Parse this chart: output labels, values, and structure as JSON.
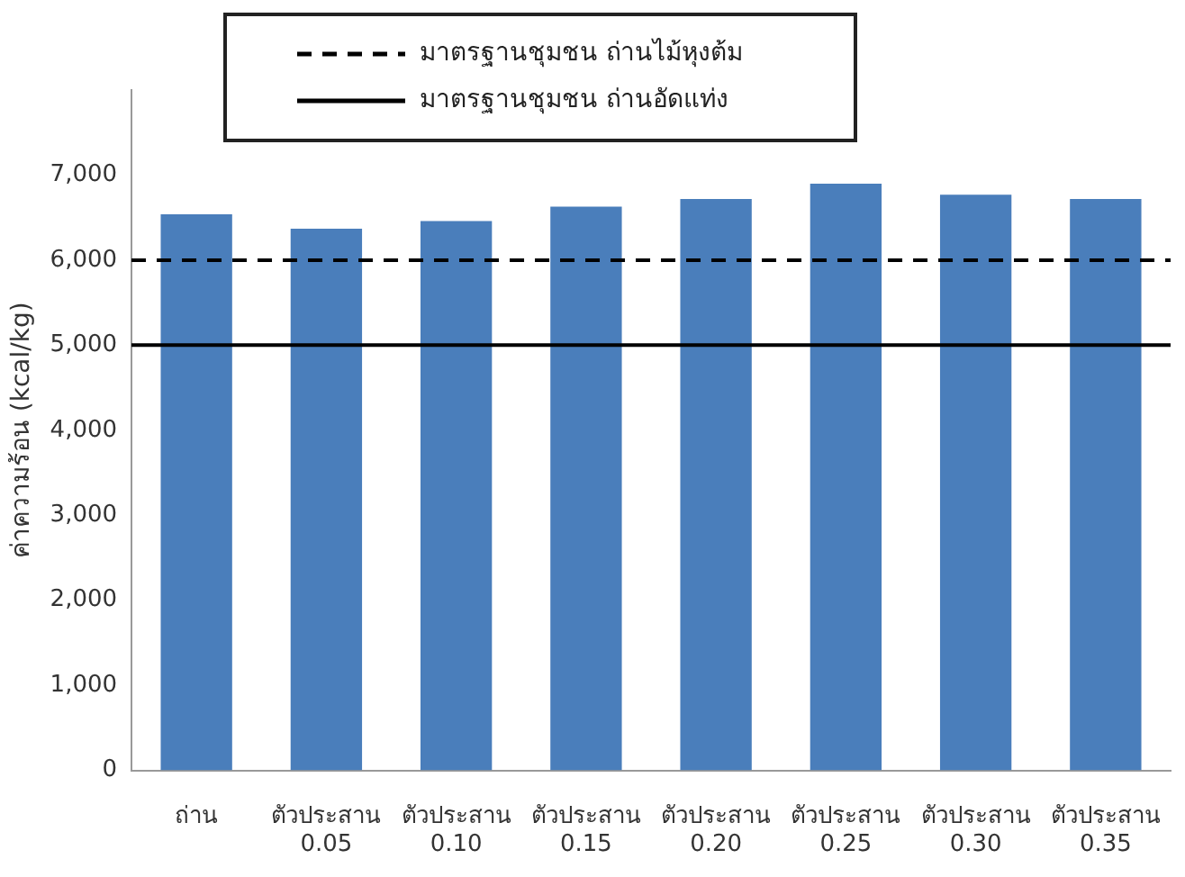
{
  "chart_data": {
    "type": "bar",
    "ylabel": "ค่าความร้อน (kcal/kg)",
    "categories": [
      "ถ่าน",
      "ตัวประสาน 0.05",
      "ตัวประสาน 0.10",
      "ตัวประสาน 0.15",
      "ตัวประสาน 0.20",
      "ตัวประสาน 0.25",
      "ตัวประสาน 0.30",
      "ตัวประสาน 0.35"
    ],
    "values": [
      6540,
      6370,
      6460,
      6630,
      6720,
      6900,
      6770,
      6720
    ],
    "color": "#4a7ebb",
    "ylim": [
      0,
      8000
    ],
    "yticks": [
      0,
      {
        "value": 1000,
        "label": "1,000"
      },
      {
        "value": 2000,
        "label": "2,000"
      },
      {
        "value": 3000,
        "label": "3,000"
      },
      {
        "value": 4000,
        "label": "4,000"
      },
      {
        "value": 5000,
        "label": "5,000"
      },
      {
        "value": 6000,
        "label": "6,000"
      },
      {
        "value": 7000,
        "label": "7,000"
      }
    ],
    "ref_lines": [
      {
        "axis": "y",
        "value": 6000,
        "label": "มาตรฐานชุมชน ถ่านไม้หุงต้ม",
        "line_style": "dashed",
        "color": "#000000"
      },
      {
        "axis": "y",
        "value": 5000,
        "label": "มาตรฐานชุมชน ถ่านอัดแท่ง",
        "line_style": "solid",
        "color": "#000000"
      }
    ],
    "grid": false,
    "legend": "top"
  }
}
